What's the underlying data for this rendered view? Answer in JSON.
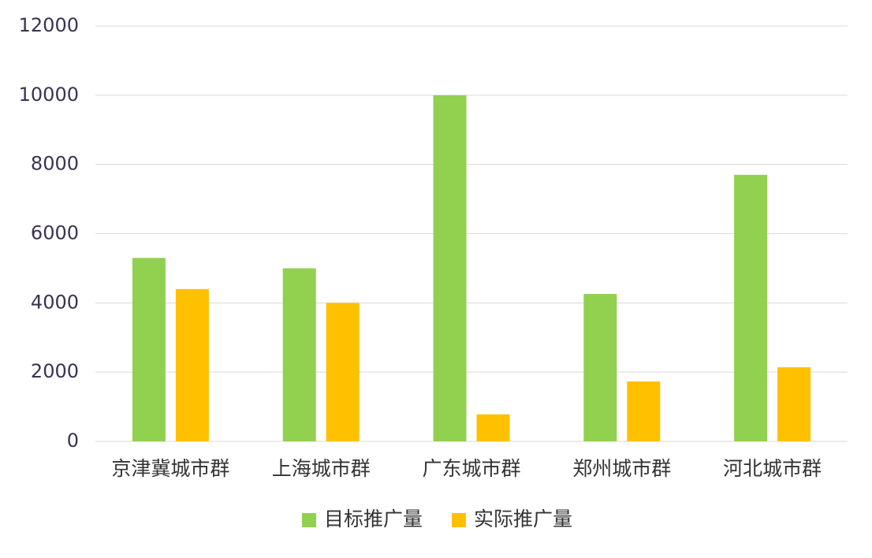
{
  "chart_data": {
    "type": "bar",
    "categories": [
      "京津冀城市群",
      "上海城市群",
      "广东城市群",
      "郑州城市群",
      "河北城市群"
    ],
    "series": [
      {
        "name": "目标推广量",
        "color": "#92d050",
        "values": [
          5300,
          5000,
          10000,
          4260,
          7700
        ]
      },
      {
        "name": "实际推广量",
        "color": "#ffc000",
        "values": [
          4400,
          4000,
          780,
          1730,
          2140
        ]
      }
    ],
    "ylim": [
      0,
      12000
    ],
    "yticks": [
      0,
      2000,
      4000,
      6000,
      8000,
      10000,
      12000
    ],
    "grid": true,
    "legend": "bottom"
  }
}
